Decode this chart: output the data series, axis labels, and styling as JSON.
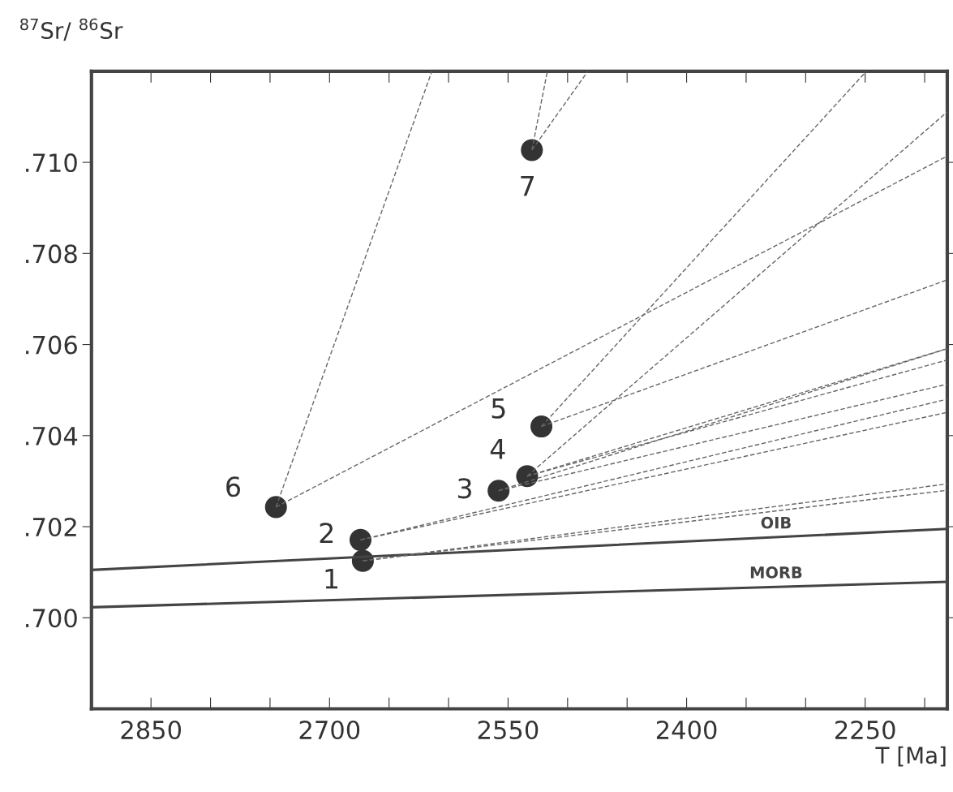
{
  "chart_data": {
    "type": "scatter",
    "xlabel": "T [Ma]",
    "ylabel": "$^{87}$Sr/ $^{86}$Sr",
    "xlim": [
      2900,
      2181
    ],
    "ylim": [
      0.698,
      0.712
    ],
    "xticks": [
      {
        "value": 2850,
        "label": "2850"
      },
      {
        "value": 2800,
        "label": null
      },
      {
        "value": 2750,
        "label": null
      },
      {
        "value": 2700,
        "label": "2700"
      },
      {
        "value": 2650,
        "label": null
      },
      {
        "value": 2600,
        "label": null
      },
      {
        "value": 2550,
        "label": "2550"
      },
      {
        "value": 2500,
        "label": null
      },
      {
        "value": 2450,
        "label": null
      },
      {
        "value": 2400,
        "label": "2400"
      },
      {
        "value": 2350,
        "label": null
      },
      {
        "value": 2300,
        "label": null
      },
      {
        "value": 2250,
        "label": "2250"
      },
      {
        "value": 2200,
        "label": null
      }
    ],
    "yticks": [
      {
        "value": 0.7,
        "label": ".700"
      },
      {
        "value": 0.702,
        "label": ".702"
      },
      {
        "value": 0.704,
        "label": ".704"
      },
      {
        "value": 0.706,
        "label": ".706"
      },
      {
        "value": 0.708,
        "label": ".708"
      },
      {
        "value": 0.71,
        "label": ".710"
      }
    ],
    "grid": false,
    "legend": false,
    "marker": "circle",
    "series": [
      {
        "type": "line",
        "name": "OIB",
        "color": "#444444",
        "line_style": "solid",
        "marker": "none",
        "x": [
          2900,
          2181
        ],
        "values": [
          0.70105,
          0.70195
        ]
      },
      {
        "type": "line",
        "name": "MORB",
        "color": "#444444",
        "line_style": "solid",
        "marker": "none",
        "x": [
          2900,
          2181
        ],
        "values": [
          0.70023,
          0.70079
        ]
      },
      {
        "type": "line",
        "color": "#666666",
        "line_style": "dashed",
        "marker": "none",
        "x": [
          2745,
          2614
        ],
        "values": [
          0.70243,
          0.712
        ]
      },
      {
        "type": "line",
        "color": "#666666",
        "line_style": "dashed",
        "marker": "none",
        "x": [
          2745,
          2181
        ],
        "values": [
          0.70243,
          0.71014
        ]
      },
      {
        "type": "line",
        "color": "#666666",
        "line_style": "dashed",
        "marker": "none",
        "x": [
          2530,
          2517
        ],
        "values": [
          0.71027,
          0.712
        ]
      },
      {
        "type": "line",
        "color": "#666666",
        "line_style": "dashed",
        "marker": "none",
        "x": [
          2530,
          2483
        ],
        "values": [
          0.71027,
          0.712
        ]
      },
      {
        "type": "line",
        "color": "#666666",
        "line_style": "dashed",
        "marker": "none",
        "x": [
          2522,
          2249
        ],
        "values": [
          0.7042,
          0.712
        ]
      },
      {
        "type": "line",
        "color": "#666666",
        "line_style": "dashed",
        "marker": "none",
        "x": [
          2522,
          2181
        ],
        "values": [
          0.7042,
          0.70742
        ]
      },
      {
        "type": "line",
        "color": "#666666",
        "line_style": "dashed",
        "marker": "none",
        "x": [
          2534,
          2181
        ],
        "values": [
          0.70311,
          0.71111
        ]
      },
      {
        "type": "line",
        "color": "#666666",
        "line_style": "dashed",
        "marker": "none",
        "x": [
          2534,
          2181
        ],
        "values": [
          0.70311,
          0.70591
        ]
      },
      {
        "type": "line",
        "color": "#666666",
        "line_style": "dashed",
        "marker": "none",
        "x": [
          2534,
          2181
        ],
        "values": [
          0.70311,
          0.70566
        ]
      },
      {
        "type": "line",
        "color": "#666666",
        "line_style": "dashed",
        "marker": "none",
        "x": [
          2558,
          2181
        ],
        "values": [
          0.70279,
          0.70513
        ]
      },
      {
        "type": "line",
        "color": "#666666",
        "line_style": "dashed",
        "marker": "none",
        "x": [
          2558,
          2181
        ],
        "values": [
          0.70279,
          0.70591
        ]
      },
      {
        "type": "line",
        "color": "#666666",
        "line_style": "dashed",
        "marker": "none",
        "x": [
          2674,
          2181
        ],
        "values": [
          0.70171,
          0.70451
        ]
      },
      {
        "type": "line",
        "color": "#666666",
        "line_style": "dashed",
        "marker": "none",
        "x": [
          2674,
          2181
        ],
        "values": [
          0.70171,
          0.7048
        ]
      },
      {
        "type": "line",
        "color": "#666666",
        "line_style": "dashed",
        "marker": "none",
        "x": [
          2672,
          2181
        ],
        "values": [
          0.70125,
          0.70294
        ]
      },
      {
        "type": "line",
        "color": "#666666",
        "line_style": "dashed",
        "marker": "none",
        "x": [
          2672,
          2181
        ],
        "values": [
          0.70125,
          0.7028
        ]
      },
      {
        "color": "#333333",
        "x": [
          2672,
          2674,
          2558,
          2534,
          2522,
          2745,
          2530
        ],
        "values": [
          0.70125,
          0.70171,
          0.70279,
          0.70311,
          0.7042,
          0.70243,
          0.71027
        ]
      }
    ],
    "annotations": [
      {
        "text": "1",
        "x": 2672,
        "y": 0.70125
      },
      {
        "text": "2",
        "x": 2674,
        "y": 0.70171
      },
      {
        "text": "3",
        "x": 2558,
        "y": 0.70279
      },
      {
        "text": "4",
        "x": 2534,
        "y": 0.70311
      },
      {
        "text": "5",
        "x": 2522,
        "y": 0.7042
      },
      {
        "text": "6",
        "x": 2745,
        "y": 0.70243
      },
      {
        "text": "7",
        "x": 2530,
        "y": 0.71027
      }
    ]
  }
}
